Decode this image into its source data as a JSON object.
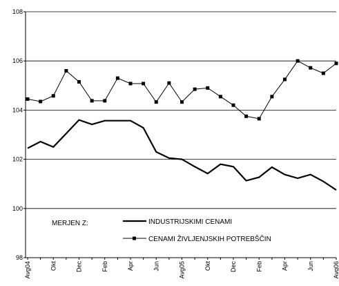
{
  "chart_data": {
    "type": "line",
    "categories": [
      "Avg04",
      null,
      "Okt",
      null,
      "Dec",
      null,
      "Feb",
      null,
      "Apr",
      null,
      "Jun",
      null,
      "Avg05",
      null,
      "Okt",
      null,
      "Dec",
      null,
      "Feb",
      null,
      "Apr",
      null,
      "Jun",
      null,
      "Avg06"
    ],
    "series": [
      {
        "name": "INDUSTRIJSKIMI CENAMI",
        "color": "#000000",
        "marker": "none",
        "values": [
          102.45,
          102.72,
          102.5,
          103.05,
          103.6,
          103.42,
          103.57,
          103.57,
          103.57,
          103.28,
          102.3,
          102.05,
          102.0,
          101.7,
          101.42,
          101.8,
          101.7,
          101.13,
          101.27,
          101.68,
          101.38,
          101.23,
          101.38,
          101.1,
          100.75
        ]
      },
      {
        "name": "CENAMI ŽIVLJENJSKIH POTREBŠČIN",
        "color": "#000000",
        "marker": "square",
        "values": [
          104.45,
          104.35,
          104.58,
          105.6,
          105.15,
          104.38,
          104.38,
          105.3,
          105.08,
          105.08,
          104.33,
          105.1,
          104.33,
          104.85,
          104.9,
          104.55,
          104.2,
          103.75,
          103.65,
          104.55,
          105.25,
          106.0,
          105.72,
          105.5,
          105.9
        ]
      }
    ],
    "legend_title": "MERJEN Z:",
    "ylim": [
      98,
      108
    ],
    "yticks": [
      98,
      100,
      102,
      104,
      106,
      108
    ],
    "grid": true
  }
}
